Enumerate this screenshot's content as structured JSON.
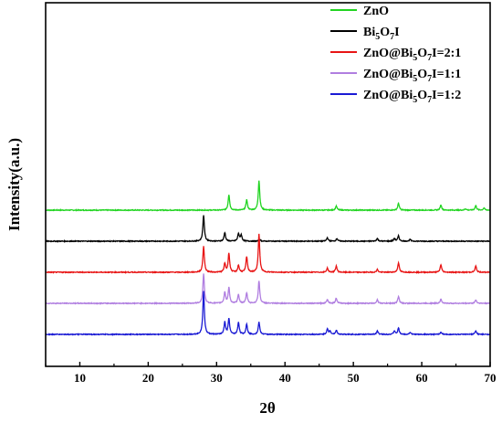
{
  "chart_data": {
    "type": "line",
    "xlabel": "2θ",
    "ylabel": "Intensity(a.u.)",
    "xlim": [
      5,
      70
    ],
    "xticks": [
      10,
      20,
      30,
      40,
      50,
      60,
      70
    ],
    "grid": false,
    "legend_position": "top-right",
    "series": [
      {
        "name": "ZnO",
        "color": "#21d421",
        "legend": [
          {
            "t": "ZnO"
          }
        ],
        "baseline_offset": 4.0,
        "peaks": [
          [
            31.8,
            0.45
          ],
          [
            34.4,
            0.3
          ],
          [
            36.2,
            0.85
          ],
          [
            47.5,
            0.12
          ],
          [
            56.6,
            0.2
          ],
          [
            62.8,
            0.15
          ],
          [
            66.4,
            0.04
          ],
          [
            67.9,
            0.13
          ],
          [
            69.1,
            0.06
          ]
        ]
      },
      {
        "name": "Bi5O7I",
        "color": "#000000",
        "legend": [
          {
            "t": "Bi"
          },
          {
            "t": "5",
            "sub": true
          },
          {
            "t": "O"
          },
          {
            "t": "7",
            "sub": true
          },
          {
            "t": "I"
          }
        ],
        "baseline_offset": 3.0,
        "peaks": [
          [
            28.1,
            0.75
          ],
          [
            31.2,
            0.25
          ],
          [
            33.2,
            0.22
          ],
          [
            33.6,
            0.18
          ],
          [
            36.3,
            0.05
          ],
          [
            46.2,
            0.1
          ],
          [
            47.6,
            0.08
          ],
          [
            53.5,
            0.08
          ],
          [
            56.0,
            0.08
          ],
          [
            56.6,
            0.15
          ],
          [
            58.3,
            0.05
          ]
        ]
      },
      {
        "name": "ZnO@Bi5O7I=2:1",
        "color": "#e81414",
        "legend": [
          {
            "t": "ZnO@Bi"
          },
          {
            "t": "5",
            "sub": true
          },
          {
            "t": "O"
          },
          {
            "t": "7",
            "sub": true
          },
          {
            "t": "I=2:1"
          }
        ],
        "baseline_offset": 2.0,
        "peaks": [
          [
            28.1,
            0.75
          ],
          [
            31.2,
            0.25
          ],
          [
            31.8,
            0.55
          ],
          [
            33.2,
            0.2
          ],
          [
            34.4,
            0.45
          ],
          [
            36.2,
            1.1
          ],
          [
            46.2,
            0.12
          ],
          [
            47.5,
            0.18
          ],
          [
            53.5,
            0.08
          ],
          [
            56.6,
            0.28
          ],
          [
            62.8,
            0.22
          ],
          [
            67.9,
            0.18
          ]
        ]
      },
      {
        "name": "ZnO@Bi5O7I=1:1",
        "color": "#b07ee0",
        "legend": [
          {
            "t": "ZnO@Bi"
          },
          {
            "t": "5",
            "sub": true
          },
          {
            "t": "O"
          },
          {
            "t": "7",
            "sub": true
          },
          {
            "t": "I=1:1"
          }
        ],
        "baseline_offset": 1.0,
        "peaks": [
          [
            28.1,
            0.85
          ],
          [
            31.2,
            0.32
          ],
          [
            31.8,
            0.45
          ],
          [
            33.2,
            0.25
          ],
          [
            34.4,
            0.3
          ],
          [
            36.2,
            0.65
          ],
          [
            46.2,
            0.12
          ],
          [
            47.5,
            0.15
          ],
          [
            53.5,
            0.1
          ],
          [
            56.6,
            0.2
          ],
          [
            62.8,
            0.12
          ],
          [
            67.9,
            0.1
          ]
        ]
      },
      {
        "name": "ZnO@Bi5O7I=1:2",
        "color": "#1a1ad4",
        "legend": [
          {
            "t": "ZnO@Bi"
          },
          {
            "t": "5",
            "sub": true
          },
          {
            "t": "O"
          },
          {
            "t": "7",
            "sub": true
          },
          {
            "t": "I=1:2"
          }
        ],
        "baseline_offset": 0.0,
        "peaks": [
          [
            28.1,
            1.25
          ],
          [
            31.2,
            0.35
          ],
          [
            31.8,
            0.45
          ],
          [
            33.2,
            0.35
          ],
          [
            34.4,
            0.3
          ],
          [
            36.2,
            0.35
          ],
          [
            46.2,
            0.15
          ],
          [
            46.6,
            0.1
          ],
          [
            47.5,
            0.12
          ],
          [
            53.5,
            0.1
          ],
          [
            56.0,
            0.1
          ],
          [
            56.6,
            0.18
          ],
          [
            58.3,
            0.06
          ],
          [
            62.8,
            0.06
          ],
          [
            67.9,
            0.1
          ]
        ]
      }
    ]
  }
}
